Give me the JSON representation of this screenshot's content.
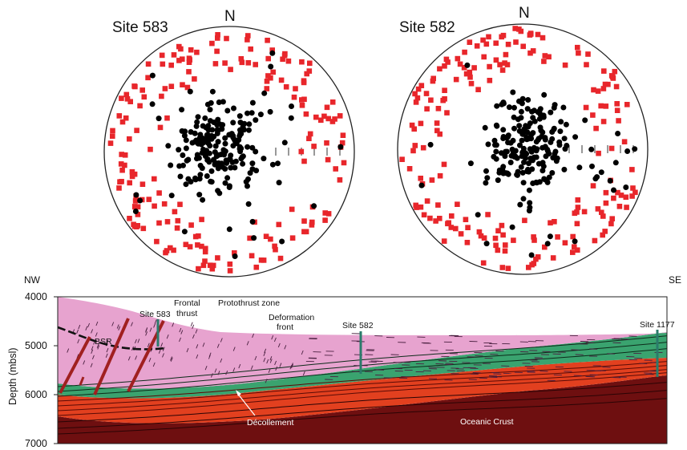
{
  "stereonets": [
    {
      "title": "Site 583",
      "north_label": "N",
      "marker_colors": {
        "poles_black": "#000000",
        "poles_red": "#e8262b"
      }
    },
    {
      "title": "Site 582",
      "north_label": "N",
      "marker_colors": {
        "poles_black": "#000000",
        "poles_red": "#e8262b"
      }
    }
  ],
  "section": {
    "left_direction": "NW",
    "right_direction": "SE",
    "y_axis_label": "Depth (mbsl)",
    "y_ticks": [
      "4000",
      "5000",
      "6000",
      "7000"
    ],
    "labels": {
      "site583": "Site 583",
      "frontal_thrust_1": "Frontal",
      "frontal_thrust_2": "thrust",
      "protothrust": "Protothrust zone",
      "deformation_1": "Deformation",
      "deformation_2": "front",
      "site582": "Site 582",
      "site1177": "Site 1177",
      "bsr": "BSR",
      "decollement": "Décollement",
      "oceanic_crust": "Oceanic Crust"
    },
    "colors": {
      "sediment_pink": "#e7a3cf",
      "green_unit": "#3aa36f",
      "red_unit": "#e2401f",
      "oceanic_crust": "#6e0f10",
      "thrust_fault": "#a02020"
    }
  }
}
